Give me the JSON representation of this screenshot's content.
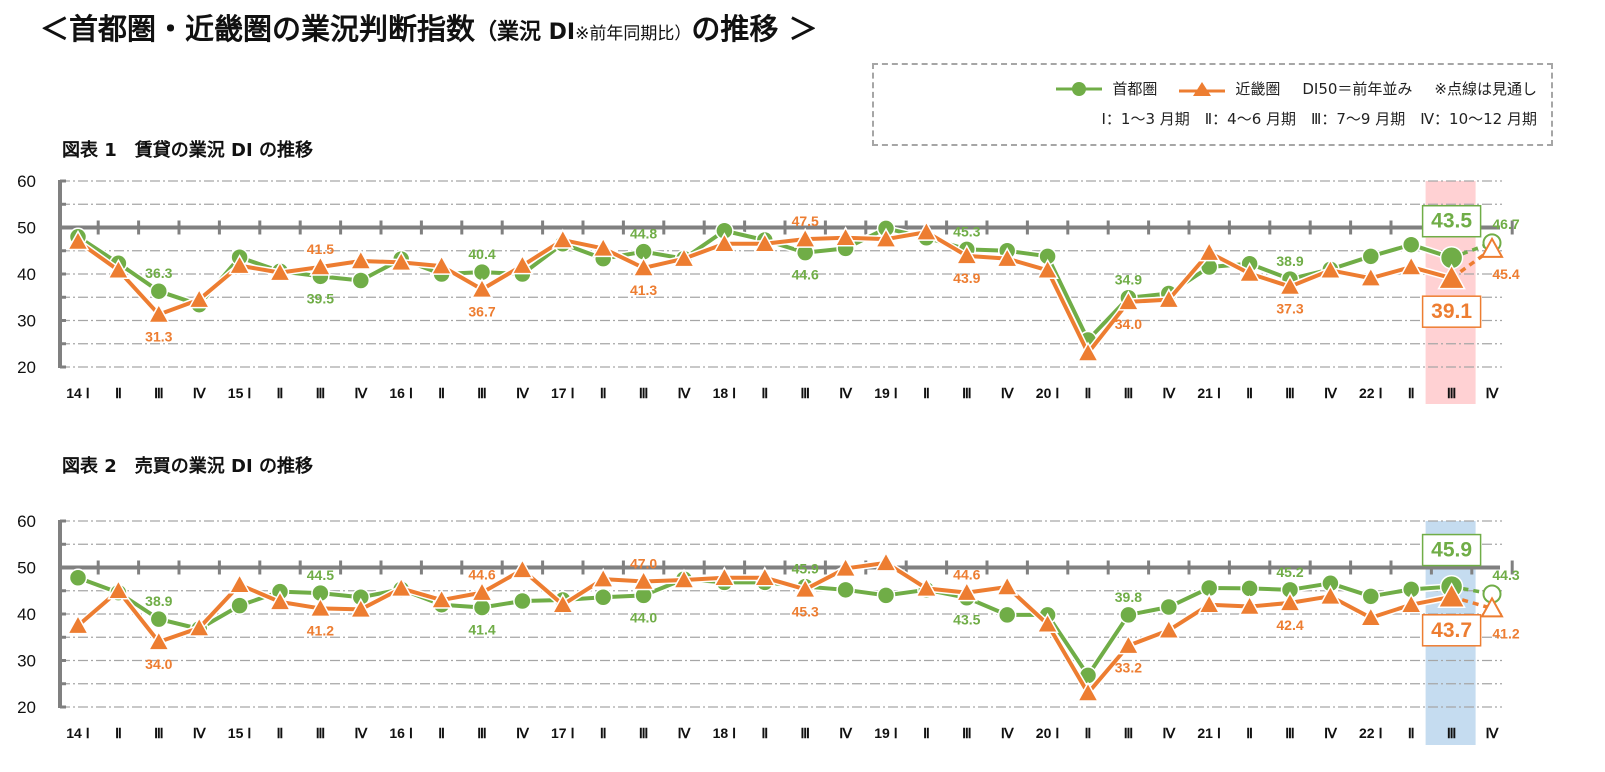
{
  "title": {
    "part1": "＜首都圏・近畿圏の業況判断指数",
    "part2": "（業況 DI",
    "part3": "※前年同期比）",
    "part4": "の推移 ＞"
  },
  "legend": {
    "series1": "首都圏",
    "series2": "近畿圏",
    "note1": "DI50＝前年並み",
    "note2": "※点線は見通し",
    "quarters": "Ⅰ：1～3 月期　Ⅱ：4～6 月期　Ⅲ：7～9 月期　Ⅳ：10～12 月期"
  },
  "colors": {
    "series1": "#70ad47",
    "series2": "#ed7d31",
    "highlight1": "#ffd1d3",
    "highlight2": "#c5dcf0",
    "grid": "#a6a6a6",
    "axis": "#808080"
  },
  "chart_data": [
    {
      "type": "line",
      "title": "図表 1　賃貸の業況 DI の推移",
      "ylim": [
        20,
        60
      ],
      "yticks": [
        20,
        30,
        40,
        50,
        60
      ],
      "reference_line": 50,
      "grid": true,
      "categories": [
        "14 Ⅰ",
        "Ⅱ",
        "Ⅲ",
        "Ⅳ",
        "15 Ⅰ",
        "Ⅱ",
        "Ⅲ",
        "Ⅳ",
        "16 Ⅰ",
        "Ⅱ",
        "Ⅲ",
        "Ⅳ",
        "17 Ⅰ",
        "Ⅱ",
        "Ⅲ",
        "Ⅳ",
        "18 Ⅰ",
        "Ⅱ",
        "Ⅲ",
        "Ⅳ",
        "19 Ⅰ",
        "Ⅱ",
        "Ⅲ",
        "Ⅳ",
        "20 Ⅰ",
        "Ⅱ",
        "Ⅲ",
        "Ⅳ",
        "21 Ⅰ",
        "Ⅱ",
        "Ⅲ",
        "Ⅳ",
        "22 Ⅰ",
        "Ⅱ",
        "Ⅲ",
        "Ⅳ"
      ],
      "highlight_category_index": 34,
      "forecast_category_index": 35,
      "series": [
        {
          "name": "首都圏",
          "marker": "circle",
          "values": [
            48.0,
            42.3,
            36.3,
            33.4,
            43.6,
            40.6,
            39.5,
            38.6,
            43.2,
            40.0,
            40.4,
            40.0,
            46.5,
            43.3,
            44.8,
            43.3,
            49.3,
            47.3,
            44.6,
            45.5,
            49.8,
            47.8,
            45.3,
            45.0,
            43.8,
            25.8,
            34.9,
            35.8,
            41.5,
            42.2,
            38.9,
            41.0,
            43.8,
            46.3,
            43.5,
            46.7
          ],
          "labeled_indices": [
            2,
            6,
            10,
            14,
            18,
            22,
            26,
            30,
            34,
            35
          ]
        },
        {
          "name": "近畿圏",
          "marker": "triangle",
          "values": [
            47.0,
            40.8,
            31.3,
            34.5,
            41.8,
            40.3,
            41.5,
            42.8,
            42.5,
            41.7,
            36.7,
            41.8,
            47.3,
            45.5,
            41.3,
            43.3,
            46.5,
            46.5,
            47.5,
            47.8,
            47.5,
            49.0,
            43.9,
            43.3,
            40.8,
            23.0,
            34.0,
            34.5,
            44.6,
            40.1,
            37.3,
            40.8,
            39.1,
            41.5,
            39.1,
            45.4
          ],
          "labeled_indices": [
            2,
            6,
            10,
            14,
            18,
            22,
            26,
            30,
            34,
            35
          ]
        }
      ]
    },
    {
      "type": "line",
      "title": "図表 2　売買の業況 DI の推移",
      "ylim": [
        20,
        60
      ],
      "yticks": [
        20,
        30,
        40,
        50,
        60
      ],
      "reference_line": 50,
      "grid": true,
      "categories": [
        "14 Ⅰ",
        "Ⅱ",
        "Ⅲ",
        "Ⅳ",
        "15 Ⅰ",
        "Ⅱ",
        "Ⅲ",
        "Ⅳ",
        "16 Ⅰ",
        "Ⅱ",
        "Ⅲ",
        "Ⅳ",
        "17 Ⅰ",
        "Ⅱ",
        "Ⅲ",
        "Ⅳ",
        "18 Ⅰ",
        "Ⅱ",
        "Ⅲ",
        "Ⅳ",
        "19 Ⅰ",
        "Ⅱ",
        "Ⅲ",
        "Ⅳ",
        "20 Ⅰ",
        "Ⅱ",
        "Ⅲ",
        "Ⅳ",
        "21 Ⅰ",
        "Ⅱ",
        "Ⅲ",
        "Ⅳ",
        "22 Ⅰ",
        "Ⅱ",
        "Ⅲ",
        "Ⅳ"
      ],
      "highlight_category_index": 34,
      "forecast_category_index": 35,
      "series": [
        {
          "name": "首都圏",
          "marker": "circle",
          "values": [
            47.8,
            44.6,
            38.9,
            36.8,
            41.8,
            44.8,
            44.5,
            43.6,
            45.3,
            42.0,
            41.4,
            42.8,
            43.0,
            43.6,
            44.0,
            47.5,
            46.8,
            46.8,
            45.9,
            45.2,
            44.0,
            45.2,
            43.5,
            39.8,
            39.8,
            26.8,
            39.8,
            41.5,
            45.6,
            45.5,
            45.2,
            46.6,
            43.8,
            45.3,
            45.9,
            44.3
          ],
          "labeled_indices": [
            2,
            6,
            10,
            14,
            18,
            22,
            26,
            30,
            34,
            35
          ]
        },
        {
          "name": "近畿圏",
          "marker": "triangle",
          "values": [
            37.5,
            45.0,
            34.0,
            37.0,
            46.3,
            42.6,
            41.2,
            41.0,
            45.5,
            43.0,
            44.6,
            49.5,
            42.0,
            47.5,
            47.0,
            47.3,
            47.8,
            47.8,
            45.3,
            49.8,
            51.0,
            45.5,
            44.6,
            45.8,
            37.8,
            23.0,
            33.2,
            36.5,
            42.0,
            41.6,
            42.4,
            43.8,
            39.2,
            42.0,
            43.7,
            41.2
          ],
          "labeled_indices": [
            2,
            6,
            10,
            14,
            18,
            22,
            26,
            30,
            34,
            35
          ]
        }
      ]
    }
  ]
}
